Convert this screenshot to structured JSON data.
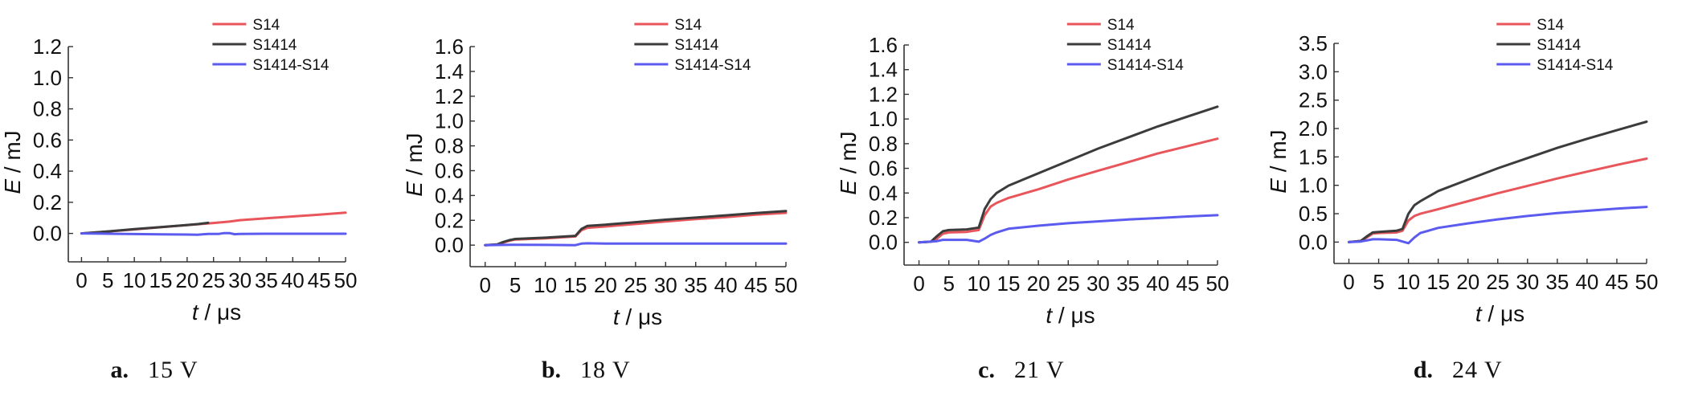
{
  "chart_data": [
    {
      "type": "line",
      "caption": {
        "letter": "a.",
        "text": "15 V"
      },
      "xlabel": {
        "var": "t",
        "unit": "μs"
      },
      "ylabel": {
        "var": "E",
        "unit": "mJ"
      },
      "xlim": [
        -2.5,
        50
      ],
      "ylim": [
        -0.1,
        1.2
      ],
      "xticks": [
        "0",
        "5",
        "10",
        "15",
        "20",
        "25",
        "30",
        "35",
        "40",
        "45",
        "50"
      ],
      "yticks": [
        "0.0",
        "0.2",
        "0.4",
        "0.6",
        "0.8",
        "1.0",
        "1.2"
      ],
      "legend": "top-right",
      "series": [
        {
          "name": "S14",
          "color": "#e8565b",
          "x": [
            0,
            5,
            10,
            15,
            20,
            25,
            28,
            30,
            35,
            40,
            45,
            50
          ],
          "y": [
            0,
            0.012,
            0.026,
            0.04,
            0.053,
            0.067,
            0.076,
            0.085,
            0.097,
            0.109,
            0.121,
            0.133
          ]
        },
        {
          "name": "S1414",
          "color": "#3c3c3c",
          "x": [
            0,
            5,
            10,
            15,
            20,
            22,
            24
          ],
          "y": [
            0,
            0.013,
            0.028,
            0.041,
            0.054,
            0.06,
            0.068
          ]
        },
        {
          "name": "S1414-S14",
          "color": "#5b5bf0",
          "x": [
            0,
            5,
            10,
            15,
            20,
            22,
            24,
            26,
            27,
            28,
            29,
            30,
            35,
            40,
            45,
            50
          ],
          "y": [
            0,
            -0.002,
            -0.004,
            -0.006,
            -0.007,
            -0.008,
            -0.003,
            -0.003,
            0.002,
            0.002,
            -0.005,
            -0.003,
            -0.002,
            -0.002,
            -0.002,
            -0.002
          ]
        }
      ]
    },
    {
      "type": "line",
      "caption": {
        "letter": "b.",
        "text": "18 V"
      },
      "xlabel": {
        "var": "t",
        "unit": "μs"
      },
      "ylabel": {
        "var": "E",
        "unit": "mJ"
      },
      "xlim": [
        -2.5,
        50
      ],
      "ylim": [
        -0.07,
        1.6
      ],
      "xticks": [
        "0",
        "5",
        "10",
        "15",
        "20",
        "25",
        "30",
        "35",
        "40",
        "45",
        "50"
      ],
      "yticks": [
        "0.0",
        "0.2",
        "0.4",
        "0.6",
        "0.8",
        "1.0",
        "1.2",
        "1.4",
        "1.6"
      ],
      "legend": "top-right",
      "series": [
        {
          "name": "S14",
          "color": "#e8565b",
          "x": [
            0,
            2,
            3,
            4,
            5,
            10,
            15,
            16,
            17,
            20,
            25,
            30,
            35,
            40,
            45,
            50
          ],
          "y": [
            0,
            0.005,
            0.02,
            0.035,
            0.045,
            0.055,
            0.07,
            0.12,
            0.14,
            0.15,
            0.17,
            0.19,
            0.21,
            0.225,
            0.245,
            0.26
          ]
        },
        {
          "name": "S1414",
          "color": "#3c3c3c",
          "x": [
            0,
            2,
            3,
            4,
            5,
            10,
            15,
            16,
            17,
            20,
            25,
            30,
            35,
            40,
            45,
            50
          ],
          "y": [
            0,
            0.006,
            0.025,
            0.04,
            0.05,
            0.06,
            0.075,
            0.13,
            0.155,
            0.165,
            0.185,
            0.205,
            0.222,
            0.24,
            0.258,
            0.275
          ]
        },
        {
          "name": "S1414-S14",
          "color": "#5b5bf0",
          "x": [
            0,
            5,
            10,
            15,
            16,
            17,
            20,
            30,
            40,
            50
          ],
          "y": [
            0,
            0.003,
            0.002,
            0.0,
            0.012,
            0.015,
            0.012,
            0.012,
            0.012,
            0.012
          ]
        }
      ]
    },
    {
      "type": "line",
      "caption": {
        "letter": "c.",
        "text": "21 V"
      },
      "xlabel": {
        "var": "t",
        "unit": "μs"
      },
      "ylabel": {
        "var": "E",
        "unit": "mJ"
      },
      "xlim": [
        -2.5,
        50
      ],
      "ylim": [
        -0.08,
        1.6
      ],
      "xticks": [
        "0",
        "5",
        "10",
        "15",
        "20",
        "25",
        "30",
        "35",
        "40",
        "45",
        "50"
      ],
      "yticks": [
        "0.0",
        "0.2",
        "0.4",
        "0.6",
        "0.8",
        "1.0",
        "1.2",
        "1.4",
        "1.6"
      ],
      "legend": "top-right",
      "series": [
        {
          "name": "S14",
          "color": "#e8565b",
          "x": [
            0,
            2,
            3,
            4,
            5,
            8,
            10,
            11,
            12,
            13,
            15,
            20,
            25,
            30,
            35,
            40,
            45,
            50
          ],
          "y": [
            0,
            0.005,
            0.03,
            0.07,
            0.08,
            0.085,
            0.1,
            0.22,
            0.29,
            0.32,
            0.36,
            0.43,
            0.51,
            0.58,
            0.65,
            0.72,
            0.78,
            0.84
          ]
        },
        {
          "name": "S1414",
          "color": "#3c3c3c",
          "x": [
            0,
            2,
            3,
            4,
            5,
            8,
            10,
            11,
            12,
            13,
            15,
            20,
            25,
            30,
            35,
            40,
            45,
            50
          ],
          "y": [
            0,
            0.005,
            0.05,
            0.09,
            0.1,
            0.105,
            0.12,
            0.27,
            0.35,
            0.4,
            0.46,
            0.56,
            0.66,
            0.76,
            0.85,
            0.94,
            1.02,
            1.1
          ]
        },
        {
          "name": "S1414-S14",
          "color": "#5b5bf0",
          "x": [
            0,
            3,
            4,
            5,
            8,
            10,
            11,
            12,
            13,
            15,
            20,
            25,
            30,
            35,
            40,
            45,
            50
          ],
          "y": [
            0,
            0.01,
            0.02,
            0.02,
            0.02,
            0.005,
            0.03,
            0.06,
            0.08,
            0.11,
            0.135,
            0.155,
            0.17,
            0.185,
            0.197,
            0.21,
            0.22
          ]
        }
      ]
    },
    {
      "type": "line",
      "caption": {
        "letter": "d.",
        "text": "24 V"
      },
      "xlabel": {
        "var": "t",
        "unit": "μs"
      },
      "ylabel": {
        "var": "E",
        "unit": "mJ"
      },
      "xlim": [
        -2.5,
        50
      ],
      "ylim": [
        -0.15,
        3.5
      ],
      "xticks": [
        "0",
        "5",
        "10",
        "15",
        "20",
        "25",
        "30",
        "35",
        "40",
        "45",
        "50"
      ],
      "yticks": [
        "0.0",
        "0.5",
        "1.0",
        "1.5",
        "2.0",
        "2.5",
        "3.0",
        "3.5"
      ],
      "legend": "top-right",
      "series": [
        {
          "name": "S14",
          "color": "#e8565b",
          "x": [
            0,
            2,
            3,
            4,
            5,
            8,
            9,
            10,
            11,
            12,
            15,
            20,
            25,
            30,
            35,
            40,
            45,
            50
          ],
          "y": [
            0,
            0.02,
            0.08,
            0.15,
            0.16,
            0.17,
            0.2,
            0.38,
            0.46,
            0.5,
            0.58,
            0.72,
            0.86,
            0.99,
            1.12,
            1.24,
            1.36,
            1.47
          ]
        },
        {
          "name": "S1414",
          "color": "#3c3c3c",
          "x": [
            0,
            2,
            3,
            4,
            5,
            8,
            9,
            10,
            11,
            12,
            15,
            20,
            25,
            30,
            35,
            40,
            45,
            50
          ],
          "y": [
            0,
            0.02,
            0.1,
            0.17,
            0.18,
            0.2,
            0.23,
            0.5,
            0.65,
            0.72,
            0.9,
            1.1,
            1.3,
            1.48,
            1.66,
            1.82,
            1.97,
            2.12
          ]
        },
        {
          "name": "S1414-S14",
          "color": "#5b5bf0",
          "x": [
            0,
            2,
            3,
            4,
            5,
            8,
            9,
            10,
            11,
            12,
            15,
            20,
            25,
            30,
            35,
            40,
            45,
            50
          ],
          "y": [
            0,
            0.01,
            0.03,
            0.05,
            0.05,
            0.04,
            0.01,
            -0.02,
            0.08,
            0.16,
            0.25,
            0.33,
            0.4,
            0.46,
            0.51,
            0.55,
            0.59,
            0.62
          ]
        }
      ]
    }
  ]
}
